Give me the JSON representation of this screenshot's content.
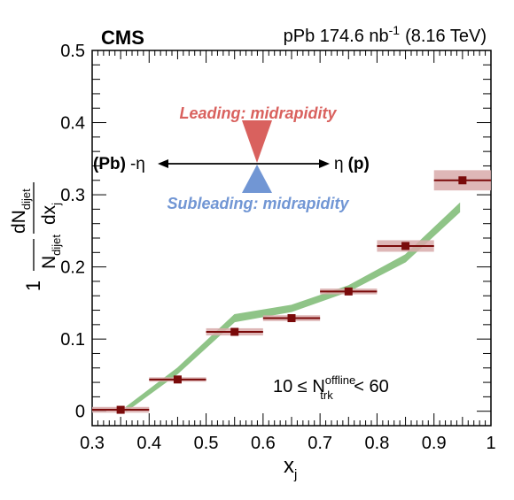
{
  "chart_data": {
    "type": "scatter",
    "header": {
      "experiment": "CMS",
      "system": "pPb 174.6 nb",
      "lumi_exp": "-1",
      "energy": "(8.16 TeV)"
    },
    "xlabel": "x",
    "xlabel_sub": "j",
    "ylabel": {
      "prefix": "1",
      "N": "N",
      "N_sub": "dijet",
      "dN": "dN",
      "dN_sub": "dijet",
      "den": "dx",
      "den_sub": "j"
    },
    "xlim": [
      0.3,
      1.0
    ],
    "ylim": [
      -0.02,
      0.5
    ],
    "x_ticks": [
      "0.3",
      "0.4",
      "0.5",
      "0.6",
      "0.7",
      "0.8",
      "0.9",
      "1"
    ],
    "y_ticks": [
      "0",
      "0.1",
      "0.2",
      "0.3",
      "0.4",
      "0.5"
    ],
    "annotation": {
      "pre": "10 ≤ N",
      "sup": "offline",
      "sub": "trk",
      "post": " < 60"
    },
    "diagram": {
      "leading": "Leading: midrapidity",
      "subleading": "Subleading: midrapidity",
      "left_label": "(Pb)",
      "left_eta": "-η",
      "right_eta": "η",
      "right_label": "(p)",
      "leading_color": "#d9615e",
      "subleading_color": "#7196d4"
    },
    "series": [
      {
        "marker_color": "#7a0a0a",
        "syst_color": "#d8aaaa",
        "points": [
          {
            "x": 0.35,
            "y": 0.002,
            "xerr": 0.05,
            "syst": 0.004
          },
          {
            "x": 0.45,
            "y": 0.044,
            "xerr": 0.05,
            "syst": 0.003
          },
          {
            "x": 0.55,
            "y": 0.11,
            "xerr": 0.05,
            "syst": 0.005
          },
          {
            "x": 0.65,
            "y": 0.129,
            "xerr": 0.05,
            "syst": 0.004
          },
          {
            "x": 0.75,
            "y": 0.166,
            "xerr": 0.05,
            "syst": 0.004
          },
          {
            "x": 0.85,
            "y": 0.229,
            "xerr": 0.05,
            "syst": 0.008
          },
          {
            "x": 0.95,
            "y": 0.32,
            "xerr": 0.05,
            "syst": 0.014
          }
        ]
      }
    ],
    "model_band": {
      "color": "#8fc487",
      "points": [
        {
          "x": 0.36,
          "lo": 0.0,
          "hi": 0.006
        },
        {
          "x": 0.45,
          "lo": 0.052,
          "hi": 0.06
        },
        {
          "x": 0.55,
          "lo": 0.124,
          "hi": 0.134
        },
        {
          "x": 0.65,
          "lo": 0.138,
          "hi": 0.147
        },
        {
          "x": 0.75,
          "lo": 0.166,
          "hi": 0.174
        },
        {
          "x": 0.85,
          "lo": 0.207,
          "hi": 0.217
        },
        {
          "x": 0.945,
          "lo": 0.276,
          "hi": 0.288
        }
      ]
    }
  }
}
